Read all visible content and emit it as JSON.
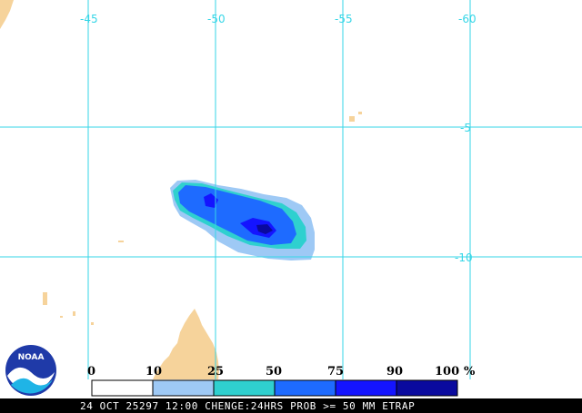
{
  "map": {
    "longitude_labels": [
      "-45",
      "-50",
      "-55",
      "-60"
    ],
    "latitude_labels": [
      "-5",
      "-10"
    ]
  },
  "legend": {
    "ticks": [
      "0",
      "10",
      "25",
      "50",
      "75",
      "90",
      "100"
    ],
    "unit": "%",
    "colors": [
      "#ffffff",
      "#9ec9f5",
      "#2fd0cf",
      "#1e6bff",
      "#1414ff",
      "#0a0a9e"
    ]
  },
  "footer": {
    "text": "24 OCT 25297 12:00 CHENGE:24HRS PROB >= 50 MM ETRAP"
  },
  "logo": {
    "text": "NOAA"
  }
}
